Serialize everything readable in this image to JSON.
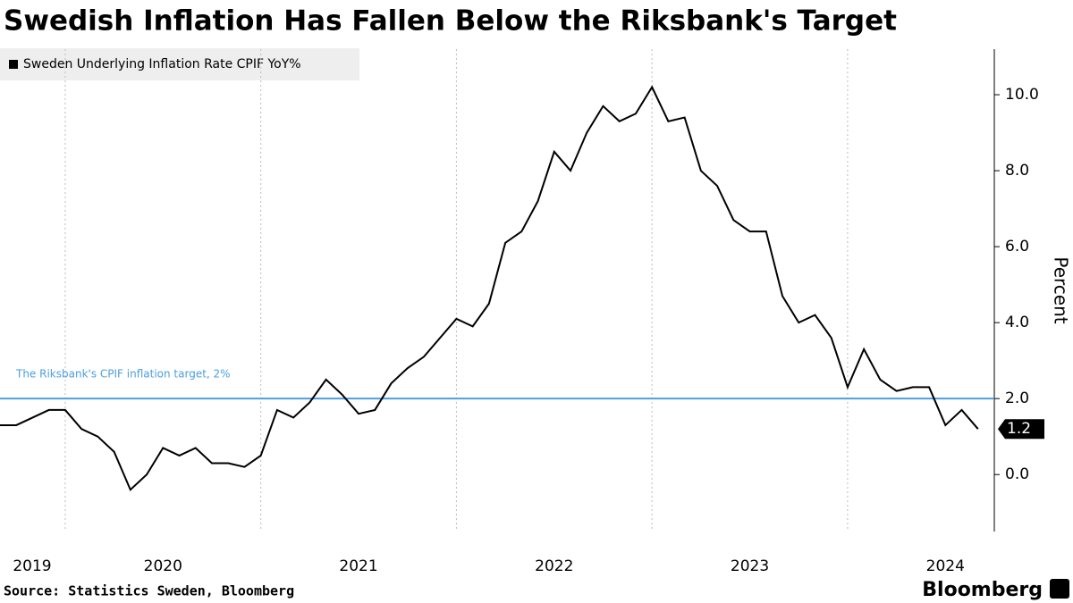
{
  "chart_data": {
    "type": "line",
    "title": "Swedish Inflation Has Fallen Below the Riksbank's Target",
    "source": "Source: Statistics Sweden, Bloomberg",
    "brand": "Bloomberg",
    "y_label": "Percent",
    "x": [
      "2019-09",
      "2019-10",
      "2019-11",
      "2019-12",
      "2020-01",
      "2020-02",
      "2020-03",
      "2020-04",
      "2020-05",
      "2020-06",
      "2020-07",
      "2020-08",
      "2020-09",
      "2020-10",
      "2020-11",
      "2020-12",
      "2021-01",
      "2021-02",
      "2021-03",
      "2021-04",
      "2021-05",
      "2021-06",
      "2021-07",
      "2021-08",
      "2021-09",
      "2021-10",
      "2021-11",
      "2021-12",
      "2022-01",
      "2022-02",
      "2022-03",
      "2022-04",
      "2022-05",
      "2022-06",
      "2022-07",
      "2022-08",
      "2022-09",
      "2022-10",
      "2022-11",
      "2022-12",
      "2023-01",
      "2023-02",
      "2023-03",
      "2023-04",
      "2023-05",
      "2023-06",
      "2023-07",
      "2023-08",
      "2023-09",
      "2023-10",
      "2023-11",
      "2023-12",
      "2024-01",
      "2024-02",
      "2024-03",
      "2024-04",
      "2024-05",
      "2024-06",
      "2024-07",
      "2024-08",
      "2024-09"
    ],
    "series": [
      {
        "name": "Sweden Underlying Inflation Rate CPIF YoY%",
        "color": "#000000",
        "values": [
          1.3,
          1.3,
          1.5,
          1.7,
          1.7,
          1.2,
          1.0,
          0.6,
          -0.4,
          0.0,
          0.7,
          0.5,
          0.7,
          0.3,
          0.3,
          0.2,
          0.5,
          1.7,
          1.5,
          1.9,
          2.5,
          2.1,
          1.6,
          1.7,
          2.4,
          2.8,
          3.1,
          3.6,
          4.1,
          3.9,
          4.5,
          6.1,
          6.4,
          7.2,
          8.5,
          8.0,
          9.0,
          9.7,
          9.3,
          9.5,
          10.2,
          9.3,
          9.4,
          8.0,
          7.6,
          6.7,
          6.4,
          6.4,
          4.7,
          4.0,
          4.2,
          3.6,
          2.3,
          3.3,
          2.5,
          2.2,
          2.3,
          2.3,
          1.3,
          1.7,
          1.2
        ]
      }
    ],
    "xlim": [
      "2019-09",
      "2024-10"
    ],
    "xticks": [
      2019,
      2020,
      2021,
      2022,
      2023,
      2024
    ],
    "ylim": [
      -1.5,
      11.2
    ],
    "yticks": [
      {
        "value": 0,
        "label": "0.0"
      },
      {
        "value": 2,
        "label": "2.0"
      },
      {
        "value": 4,
        "label": "4.0"
      },
      {
        "value": 6,
        "label": "6.0"
      },
      {
        "value": 8,
        "label": "8.0"
      },
      {
        "value": 10,
        "label": "10.0"
      }
    ],
    "target": {
      "value": 2,
      "label": "The Riksbank's CPIF inflation target, 2%",
      "color": "#4a9fe0"
    },
    "grid": true
  }
}
